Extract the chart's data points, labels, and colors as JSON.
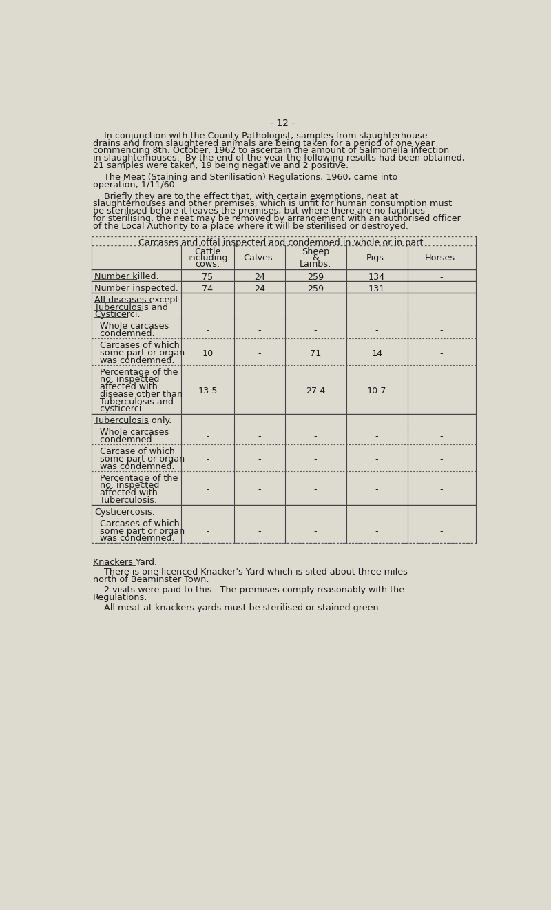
{
  "bg_color": "#dddbd0",
  "text_color": "#1a1a1a",
  "page_number": "- 12 -",
  "para1_indent": "    In conjunction with the County Pathologist, samples from slaughterhouse",
  "para1_lines": [
    "    In conjunction with the County Pathologist, samples from slaughterhouse",
    "drains and from slaughtered animals are being taken for a period of one year",
    "commencing 8th. October, 1962 to ascertain the amount of Salmonella infection",
    "in slaughterhouses.  By the end of the year the following results had been obtained,",
    "21 samples were taken, 19 being negative and 2 positive."
  ],
  "para2_lines": [
    "    The Meat (Staining and Sterilisation) Regulations, 1960, came into",
    "operation, 1/11/60."
  ],
  "para3_lines": [
    "    Briefly they are to the effect that, with certain exemptions, neat at",
    "slaughterhouses and other premises, which is unfit for human consumption must",
    "be sterilised before it leaves the premises, but where there are no facilities",
    "for sterilising, the neat may be removed by arrangement with an authorised officer",
    "of the Local Authority to a place where it will be sterilised or destroyed."
  ],
  "table_title": "Carcases and offal inspected and condemned in whole or in part.",
  "knackers_title": "Knackers Yard.",
  "knackers_lines": [
    "    There is one licenced Knacker's Yard which is sited about three miles",
    "north of Beaminster Town.",
    "",
    "    2 visits were paid to this.  The premises comply reasonably with the",
    "Regulations.",
    "",
    "    All meat at knackers yards must be sterilised or stained green."
  ]
}
